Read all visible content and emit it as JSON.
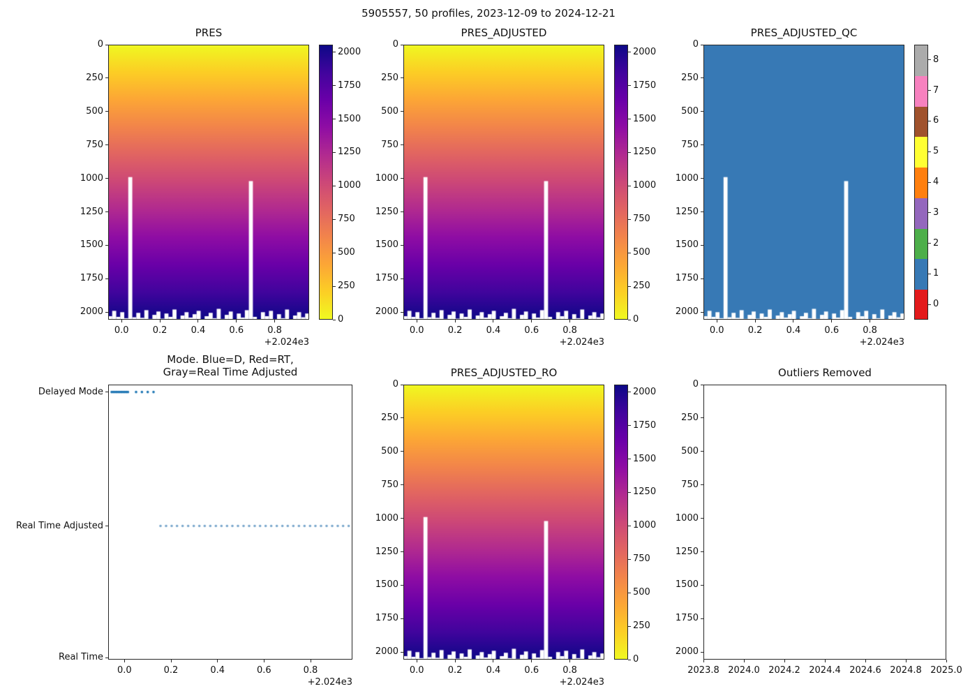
{
  "chart_data": {
    "type": "heatmap",
    "suptitle": "5905557, 50 profiles, 2023-12-09 to 2024-12-21",
    "float_id": "5905557",
    "n_profiles": 50,
    "date_range": "2023-12-09 to 2024-12-21",
    "time_axis": {
      "lim": [
        2023.93,
        2024.98
      ],
      "ticks": [
        2024.0,
        2024.2,
        2024.4,
        2024.6,
        2024.8
      ],
      "tick_labels": [
        "0.0",
        "0.2",
        "0.4",
        "0.6",
        "0.8"
      ],
      "offset_label": "+2.024e3"
    },
    "pressure_axis": {
      "lim": [
        0,
        2056
      ],
      "inverted": true,
      "ticks": [
        0,
        250,
        500,
        750,
        1000,
        1250,
        1500,
        1750,
        2000
      ],
      "tick_labels": [
        "0",
        "250",
        "500",
        "750",
        "1000",
        "1250",
        "1500",
        "1750",
        "2000"
      ]
    },
    "outlier_time_axis": {
      "lim": [
        2023.8,
        2025.0
      ],
      "ticks": [
        2023.8,
        2024.0,
        2024.2,
        2024.4,
        2024.6,
        2024.8,
        2025.0
      ],
      "tick_labels": [
        "2023.8",
        "2024.0",
        "2024.2",
        "2024.4",
        "2024.6",
        "2024.8",
        "2025.0"
      ]
    },
    "plasma_colormap": [
      "#0d0887",
      "#41049d",
      "#6a00a8",
      "#8f0da4",
      "#b12a90",
      "#cc4778",
      "#e16462",
      "#f2844b",
      "#fca636",
      "#fcce25",
      "#f0f921"
    ],
    "pressure_colorbar": {
      "vmin": 0,
      "vmax": 2056,
      "ticks": [
        0,
        250,
        500,
        750,
        1000,
        1250,
        1500,
        1750,
        2000
      ],
      "tick_labels": [
        "0",
        "250",
        "500",
        "750",
        "1000",
        "1250",
        "1500",
        "1750",
        "2000"
      ]
    },
    "qc_colorbar": {
      "ticks": [
        0,
        1,
        2,
        3,
        4,
        5,
        6,
        7,
        8
      ],
      "tick_labels": [
        "0",
        "1",
        "2",
        "3",
        "4",
        "5",
        "6",
        "7",
        "8"
      ],
      "colors": [
        "#e31a1c",
        "#3779b5",
        "#4daf4a",
        "#9467bd",
        "#ff7f0e",
        "#ffff33",
        "#a0522d",
        "#f781bf",
        "#ababab"
      ]
    },
    "profiles": {
      "dates_decimal_year": [
        2023.945,
        2023.952,
        2023.959,
        2023.966,
        2023.973,
        2023.98,
        2023.987,
        2023.994,
        2024.001,
        2024.008,
        2024.015,
        2024.05,
        2024.075,
        2024.1,
        2024.125,
        2024.155,
        2024.179,
        2024.203,
        2024.226,
        2024.25,
        2024.274,
        2024.298,
        2024.322,
        2024.345,
        2024.369,
        2024.393,
        2024.417,
        2024.441,
        2024.464,
        2024.488,
        2024.512,
        2024.536,
        2024.56,
        2024.583,
        2024.607,
        2024.631,
        2024.655,
        2024.679,
        2024.702,
        2024.726,
        2024.75,
        2024.774,
        2024.798,
        2024.821,
        2024.845,
        2024.869,
        2024.893,
        2024.917,
        2024.94,
        2024.964
      ],
      "mode": [
        "D",
        "D",
        "D",
        "D",
        "D",
        "D",
        "D",
        "D",
        "D",
        "D",
        "D",
        "D",
        "D",
        "D",
        "D",
        "A",
        "A",
        "A",
        "A",
        "A",
        "A",
        "A",
        "A",
        "A",
        "A",
        "A",
        "A",
        "A",
        "A",
        "A",
        "A",
        "A",
        "A",
        "A",
        "A",
        "A",
        "A",
        "A",
        "A",
        "A",
        "A",
        "A",
        "A",
        "A",
        "A",
        "A",
        "A",
        "A",
        "A",
        "A"
      ],
      "max_pressure_dbar": [
        2030,
        1990,
        2035,
        2000,
        2045,
        990,
        2038,
        2005,
        2042,
        1985,
        2050,
        2020,
        1995,
        2048,
        2010,
        2035,
        1980,
        2052,
        2025,
        2000,
        2040,
        2015,
        1990,
        2055,
        2030,
        2005,
        2045,
        1975,
        2050,
        2020,
        1995,
        2056,
        2010,
        2040,
        1985,
        1020,
        2035,
        2056,
        2000,
        2030,
        1990,
        2052,
        2015,
        2045,
        1980,
        2056,
        2025,
        2000,
        2038,
        2010
      ]
    },
    "subplots": [
      {
        "key": "pres",
        "kind": "pcolormesh",
        "title": "PRES"
      },
      {
        "key": "pres_adjusted",
        "kind": "pcolormesh",
        "title": "PRES_ADJUSTED"
      },
      {
        "key": "pres_adjusted_qc",
        "kind": "qc",
        "title": "PRES_ADJUSTED_QC",
        "qc_value": 1
      },
      {
        "key": "mode",
        "kind": "mode",
        "title_lines": [
          "Mode. Blue=D, Red=RT,",
          "Gray=Real Time Adjusted"
        ],
        "categories": [
          "Delayed Mode",
          "Real Time Adjusted",
          "Real Time"
        ],
        "colors": {
          "D": "#1f77b4",
          "A": "#7aa7cc"
        }
      },
      {
        "key": "pres_adjusted_ro",
        "kind": "pcolormesh",
        "title": "PRES_ADJUSTED_RO"
      },
      {
        "key": "outliers",
        "kind": "empty",
        "title": "Outliers Removed"
      }
    ]
  }
}
